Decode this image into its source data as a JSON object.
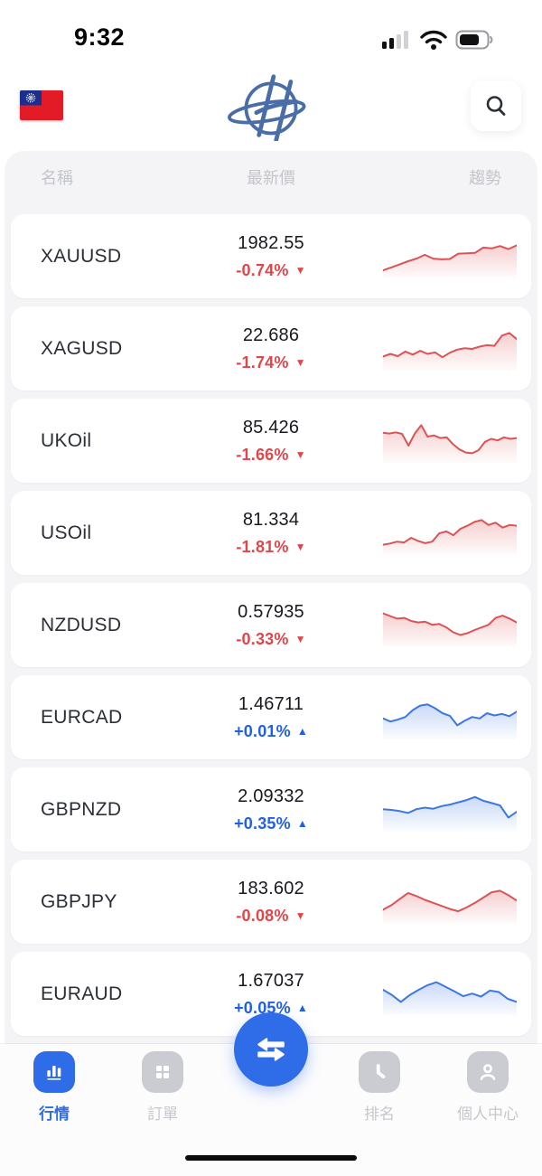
{
  "status_bar": {
    "time": "9:32"
  },
  "header": {
    "flag_icon": "taiwan-flag",
    "logo_icon": "brand-h-globe-logo",
    "search_icon": "magnifier"
  },
  "table_header": {
    "name": "名稱",
    "price": "最新價",
    "trend": "趨勢"
  },
  "colors": {
    "up_text": "#2160e6",
    "up_line": "#3d77e3",
    "down_text": "#e2464a",
    "down_line": "#dd5355",
    "nav_active": "#2f6ce8",
    "logo_blue": "#4a6da7"
  },
  "rows": [
    {
      "symbol": "XAUUSD",
      "price": "1982.55",
      "change": "-0.74%",
      "direction": "down",
      "spark": [
        86,
        78,
        70,
        62,
        55,
        45,
        55,
        57,
        56,
        42,
        41,
        40,
        26,
        28,
        22,
        30,
        20
      ]
    },
    {
      "symbol": "XAGUSD",
      "price": "22.686",
      "change": "-1.74%",
      "direction": "down",
      "spark": [
        70,
        63,
        69,
        57,
        65,
        55,
        63,
        59,
        72,
        60,
        52,
        48,
        50,
        44,
        40,
        42,
        15,
        8,
        24
      ]
    },
    {
      "symbol": "UKOil",
      "price": "85.426",
      "change": "-1.66%",
      "direction": "down",
      "spark": [
        28,
        30,
        27,
        31,
        62,
        30,
        8,
        38,
        35,
        42,
        40,
        58,
        72,
        80,
        82,
        74,
        52,
        44,
        48,
        40,
        44,
        42
      ]
    },
    {
      "symbol": "USOil",
      "price": "81.334",
      "change": "-1.81%",
      "direction": "down",
      "spark": [
        80,
        77,
        72,
        74,
        62,
        70,
        76,
        72,
        50,
        45,
        55,
        38,
        30,
        20,
        15,
        28,
        22,
        35,
        28,
        30
      ]
    },
    {
      "symbol": "NZDUSD",
      "price": "0.57935",
      "change": "-0.33%",
      "direction": "down",
      "spark": [
        18,
        25,
        32,
        30,
        38,
        42,
        40,
        48,
        46,
        55,
        68,
        75,
        70,
        62,
        55,
        48,
        30,
        24,
        32,
        42
      ]
    },
    {
      "symbol": "EURCAD",
      "price": "1.46711",
      "change": "+0.01%",
      "direction": "up",
      "spark": [
        52,
        60,
        55,
        48,
        30,
        18,
        15,
        25,
        38,
        45,
        70,
        58,
        48,
        52,
        38,
        44,
        40,
        46,
        34
      ]
    },
    {
      "symbol": "GBPNZD",
      "price": "2.09332",
      "change": "+0.35%",
      "direction": "up",
      "spark": [
        48,
        50,
        53,
        58,
        48,
        44,
        47,
        40,
        36,
        30,
        24,
        16,
        26,
        32,
        38,
        70,
        55
      ]
    },
    {
      "symbol": "GBPJPY",
      "price": "183.602",
      "change": "-0.08%",
      "direction": "down",
      "spark": [
        70,
        58,
        42,
        26,
        34,
        44,
        52,
        60,
        68,
        74,
        64,
        52,
        38,
        24,
        20,
        32,
        46
      ]
    },
    {
      "symbol": "EURAUD",
      "price": "1.67037",
      "change": "+0.05%",
      "direction": "up",
      "spark": [
        38,
        52,
        70,
        52,
        38,
        26,
        18,
        30,
        42,
        55,
        48,
        56,
        40,
        44,
        62,
        70
      ]
    }
  ],
  "nav": {
    "items": [
      {
        "label": "行情",
        "icon": "bar-chart",
        "active": true
      },
      {
        "label": "訂單",
        "icon": "grid",
        "active": false
      },
      {
        "label": "排名",
        "icon": "clock",
        "active": false
      },
      {
        "label": "個人中心",
        "icon": "person",
        "active": false
      }
    ],
    "fab_icon": "swap-arrows"
  }
}
